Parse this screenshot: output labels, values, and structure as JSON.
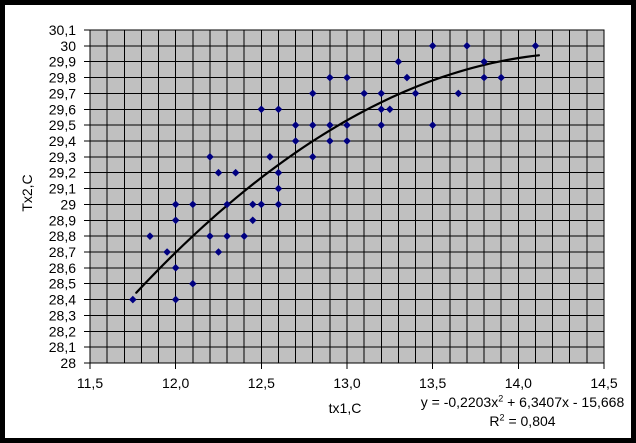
{
  "chart_data": {
    "type": "scatter",
    "title": "",
    "legend": false,
    "grid": true,
    "colors": {
      "chart_background": "#FFFFFF",
      "plot_background": "#C0C0C0",
      "gridline": "#000000",
      "axis": "#000000",
      "text": "#000000",
      "outer_frame": "#000000",
      "marker": "#000080",
      "trendline": "#000000"
    },
    "x_axis": {
      "title": "tx1,C",
      "min": 11.5,
      "max": 14.5,
      "gridline_step": 0.1,
      "tick_step": 0.5,
      "tick_labels": [
        "11,5",
        "12,0",
        "12,5",
        "13,0",
        "13,5",
        "14,0",
        "14,5"
      ]
    },
    "y_axis": {
      "title": "Tx2,C",
      "min": 28.0,
      "max": 30.1,
      "gridline_step": 0.1,
      "tick_step": 0.1,
      "tick_labels": [
        "30,1",
        "30",
        "29,9",
        "29,8",
        "29,7",
        "29,6",
        "29,5",
        "29,4",
        "29,3",
        "29,2",
        "29,1",
        "29",
        "28,9",
        "28,8",
        "28,7",
        "28,6",
        "28,5",
        "28,4",
        "28,3",
        "28,2",
        "28,1",
        "28"
      ]
    },
    "marker": {
      "shape": "diamond",
      "color": "#000080",
      "size": 7
    },
    "points": [
      [
        11.75,
        28.4
      ],
      [
        12.0,
        28.4
      ],
      [
        12.1,
        28.5
      ],
      [
        12.0,
        28.6
      ],
      [
        11.95,
        28.7
      ],
      [
        12.25,
        28.7
      ],
      [
        11.85,
        28.8
      ],
      [
        12.2,
        28.8
      ],
      [
        12.3,
        28.8
      ],
      [
        12.4,
        28.8
      ],
      [
        12.0,
        28.9
      ],
      [
        12.45,
        28.9
      ],
      [
        12.0,
        29.0
      ],
      [
        12.1,
        29.0
      ],
      [
        12.3,
        29.0
      ],
      [
        12.45,
        29.0
      ],
      [
        12.5,
        29.0
      ],
      [
        12.6,
        29.0
      ],
      [
        12.6,
        29.1
      ],
      [
        12.25,
        29.2
      ],
      [
        12.35,
        29.2
      ],
      [
        12.6,
        29.2
      ],
      [
        12.2,
        29.3
      ],
      [
        12.55,
        29.3
      ],
      [
        12.8,
        29.3
      ],
      [
        12.7,
        29.4
      ],
      [
        12.9,
        29.4
      ],
      [
        13.0,
        29.4
      ],
      [
        12.7,
        29.5
      ],
      [
        12.8,
        29.5
      ],
      [
        12.9,
        29.5
      ],
      [
        13.0,
        29.5
      ],
      [
        13.2,
        29.5
      ],
      [
        13.5,
        29.5
      ],
      [
        12.5,
        29.6
      ],
      [
        12.6,
        29.6
      ],
      [
        13.2,
        29.6
      ],
      [
        13.25,
        29.6
      ],
      [
        12.8,
        29.7
      ],
      [
        13.1,
        29.7
      ],
      [
        13.2,
        29.7
      ],
      [
        13.4,
        29.7
      ],
      [
        13.65,
        29.7
      ],
      [
        12.9,
        29.8
      ],
      [
        13.0,
        29.8
      ],
      [
        13.35,
        29.8
      ],
      [
        13.8,
        29.8
      ],
      [
        13.9,
        29.8
      ],
      [
        13.3,
        29.9
      ],
      [
        13.8,
        29.9
      ],
      [
        13.5,
        30.0
      ],
      [
        13.7,
        30.0
      ],
      [
        14.1,
        30.0
      ]
    ],
    "trendline": {
      "type": "polynomial",
      "degree": 2,
      "coefficients": {
        "a": -0.2203,
        "b": 6.3407,
        "c": -15.668
      },
      "x_start": 11.77,
      "x_end": 14.12,
      "stroke_width": 2.2
    },
    "annotations": {
      "equation": {
        "prefix": "y = -0,2203x",
        "sup": "2",
        "suffix": " + 6,3407x - 15,668"
      },
      "r_squared": {
        "prefix": "R",
        "sup": "2",
        "suffix": " = 0,804"
      }
    }
  }
}
